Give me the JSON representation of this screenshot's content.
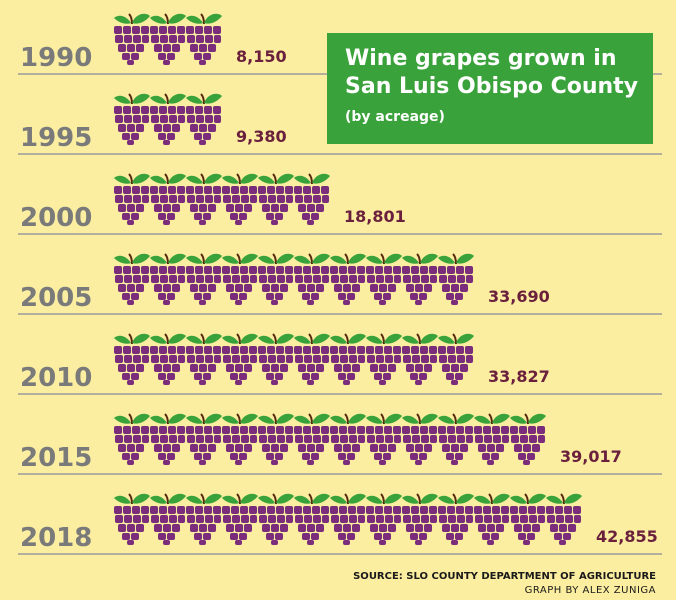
{
  "chart_data": {
    "type": "bar",
    "orientation": "horizontal",
    "title": "Wine grapes grown in San Luis Obispo County",
    "subtitle": "(by acreage)",
    "categories": [
      "1990",
      "1995",
      "2000",
      "2005",
      "2010",
      "2015",
      "2018"
    ],
    "values": [
      8150,
      9380,
      18801,
      33690,
      33827,
      39017,
      42855
    ],
    "value_labels": [
      "8,150",
      "9,380",
      "18,801",
      "33,690",
      "33,827",
      "39,017",
      "42,855"
    ],
    "source": "SOURCE: SLO COUNTY DEPARTMENT OF AGRICULTURE",
    "credit": "GRAPH BY ALEX ZUNIGA"
  },
  "colors": {
    "background": "#fbeea0",
    "grape": "#7b2d7b",
    "grape_highlight": "#9a4a9a",
    "leaf": "#3aa23a",
    "stem": "#5a2a10",
    "year_text": "#7a7a7a",
    "value_text": "#6a1f3c",
    "rule": "#9a9a9a",
    "title_box": "#3aa23a"
  },
  "icons": {
    "bar_unit": "grape-bunch-icon"
  }
}
